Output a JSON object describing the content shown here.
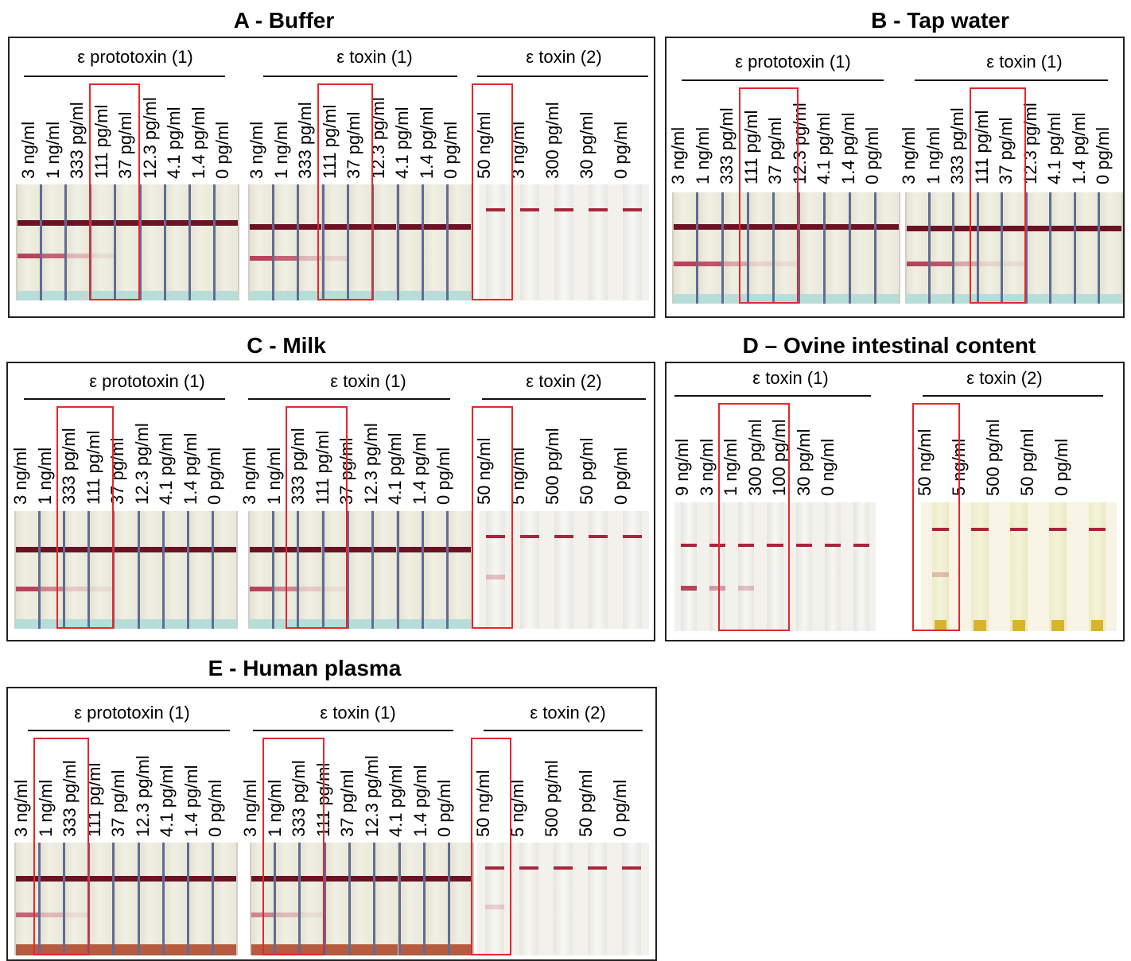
{
  "colors": {
    "highlight": "#e8262a",
    "control_line": "#6b1226",
    "test_line": "#b9415c"
  },
  "panels": [
    {
      "id": "A",
      "title": "A - Buffer",
      "groups": [
        {
          "header": "ε prototoxin (1)",
          "labels": [
            "3 ng/ml",
            "1 ng/ml",
            "333 pg/ml",
            "111 pg/ml",
            "37 pg/ml",
            "12.3 pg/ml",
            "4.1 pg/ml",
            "1.4 pg/ml",
            "0 pg/ml"
          ],
          "test_intensity": [
            1,
            0.8,
            0.3,
            0.1,
            0,
            0,
            0,
            0,
            0
          ],
          "highlight": [
            3,
            4
          ]
        },
        {
          "header": "ε toxin (1)",
          "labels": [
            "3 ng/ml",
            "1 ng/ml",
            "333 pg/ml",
            "111 pg/ml",
            "37 pg/ml",
            "12.3 pg/ml",
            "4.1 pg/ml",
            "1.4 pg/ml",
            "0 pg/ml"
          ],
          "test_intensity": [
            1,
            0.8,
            0.3,
            0.15,
            0,
            0,
            0,
            0,
            0
          ],
          "highlight": [
            3,
            4
          ]
        },
        {
          "header": "ε toxin (2)",
          "labels": [
            "50 ng/ml",
            "3 ng/ml",
            "300 pg/ml",
            "30 pg/ml",
            "0 pg/ml"
          ],
          "test_intensity": [
            0,
            0,
            0,
            0,
            0
          ],
          "highlight": [
            0
          ]
        }
      ]
    },
    {
      "id": "B",
      "title": "B - Tap water",
      "groups": [
        {
          "header": "ε prototoxin (1)",
          "labels": [
            "3 ng/ml",
            "1 ng/ml",
            "333 pg/ml",
            "111 pg/ml",
            "37 pg/ml",
            "12.3 pg/ml",
            "4.1 pg/ml",
            "1.4 pg/ml",
            "0 pg/ml"
          ],
          "test_intensity": [
            1,
            0.9,
            0.4,
            0.15,
            0.1,
            0,
            0,
            0,
            0
          ],
          "highlight": [
            3,
            4
          ]
        },
        {
          "header": "ε toxin (1)",
          "labels": [
            "3 ng/ml",
            "1 ng/ml",
            "333 pg/ml",
            "111 pg/ml",
            "37 pg/ml",
            "12.3 pg/ml",
            "4.1 pg/ml",
            "1.4 pg/ml",
            "0 pg/ml"
          ],
          "test_intensity": [
            1,
            0.9,
            0.4,
            0.15,
            0.1,
            0,
            0,
            0,
            0
          ],
          "highlight": [
            3,
            4
          ]
        }
      ]
    },
    {
      "id": "C",
      "title": "C - Milk",
      "groups": [
        {
          "header": "ε prototoxin (1)",
          "labels": [
            "3 ng/ml",
            "1 ng/ml",
            "333 pg/ml",
            "111 pg/ml",
            "37 pg/ml",
            "12.3 pg/ml",
            "4.1 pg/ml",
            "1.4 pg/ml",
            "0 pg/ml"
          ],
          "test_intensity": [
            1,
            0.6,
            0.2,
            0.1,
            0,
            0,
            0,
            0,
            0
          ],
          "highlight": [
            2,
            3
          ]
        },
        {
          "header": "ε toxin (1)",
          "labels": [
            "3 ng/ml",
            "1 ng/ml",
            "333 pg/ml",
            "111 pg/ml",
            "37 pg/ml",
            "12.3 pg/ml",
            "4.1 pg/ml",
            "1.4 pg/ml",
            "0 pg/ml"
          ],
          "test_intensity": [
            1,
            0.6,
            0.2,
            0.1,
            0,
            0,
            0,
            0,
            0
          ],
          "highlight": [
            2,
            3
          ]
        },
        {
          "header": "ε toxin (2)",
          "labels": [
            "50 ng/ml",
            "5 ng/ml",
            "500 pg/ml",
            "50 pg/ml",
            "0 pg/ml"
          ],
          "test_intensity": [
            0.3,
            0,
            0,
            0,
            0
          ],
          "highlight": [
            0
          ]
        }
      ]
    },
    {
      "id": "D",
      "title": "D – Ovine intestinal content",
      "groups": [
        {
          "header": "ε toxin (1)",
          "labels": [
            "9 ng/ml",
            "3 ng/ml",
            "1 ng/ml",
            "300 pg/ml",
            "100 pg/ml",
            "30 pg/ml",
            "0 ng/ml"
          ],
          "test_intensity": [
            1,
            0.5,
            0.3,
            0,
            0,
            0,
            0
          ],
          "highlight": [
            2,
            3
          ]
        },
        {
          "header": "ε toxin (2)",
          "labels": [
            "50 ng/ml",
            "5 ng/ml",
            "500 pg/ml",
            "50 pg/ml",
            "0 pg/ml"
          ],
          "test_intensity": [
            0.3,
            0,
            0,
            0,
            0
          ],
          "highlight": [
            0
          ]
        }
      ]
    },
    {
      "id": "E",
      "title": "E - Human plasma",
      "groups": [
        {
          "header": "ε prototoxin (1)",
          "labels": [
            "3 ng/ml",
            "1 ng/ml",
            "333 pg/ml",
            "111 pg/ml",
            "37 pg/ml",
            "12.3 pg/ml",
            "4.1 pg/ml",
            "1.4 pg/ml",
            "0 pg/ml"
          ],
          "test_intensity": [
            0.8,
            0.3,
            0.1,
            0,
            0,
            0,
            0,
            0,
            0
          ],
          "highlight": [
            1,
            2
          ]
        },
        {
          "header": "ε toxin (1)",
          "labels": [
            "3 ng/ml",
            "1 ng/ml",
            "333 pg/ml",
            "111 pg/ml",
            "37 pg/ml",
            "12.3 pg/ml",
            "4.1 pg/ml",
            "1.4 pg/ml",
            "0 pg/ml"
          ],
          "test_intensity": [
            0.6,
            0.3,
            0.1,
            0,
            0,
            0,
            0,
            0,
            0
          ],
          "highlight": [
            1,
            2
          ]
        },
        {
          "header": "ε toxin (2)",
          "labels": [
            "50 ng/ml",
            "5 ng/ml",
            "500 pg/ml",
            "50 pg/ml",
            "0 pg/ml"
          ],
          "test_intensity": [
            0.2,
            0,
            0,
            0,
            0
          ],
          "highlight": [
            0
          ]
        }
      ]
    }
  ]
}
